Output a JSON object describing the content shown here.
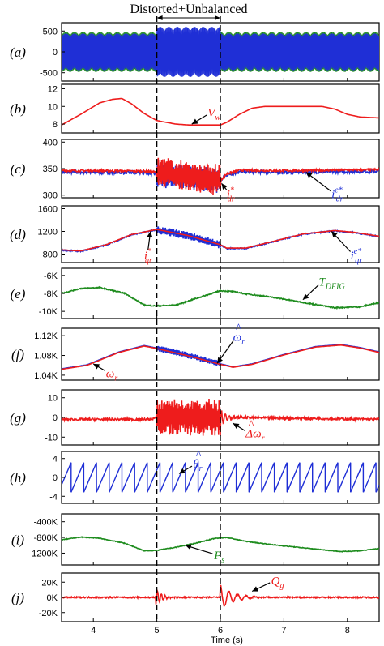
{
  "figure": {
    "title": "Distorted+Unbalanced",
    "xlabel": "Time (s)",
    "xticks": [
      "4",
      "5",
      "6",
      "7",
      "8"
    ],
    "xlim": [
      3.5,
      8.5
    ],
    "event_times": [
      5,
      6
    ],
    "colors": {
      "red": "#ee1c1c",
      "blue": "#1f2fd6",
      "green": "#1e8c1e"
    }
  },
  "chart_data": [
    {
      "label": "(a)",
      "type": "line",
      "ylim": [
        -700,
        700
      ],
      "yticks": [
        {
          "v": 500,
          "t": "500"
        },
        {
          "v": 0,
          "t": "0"
        },
        {
          "v": -500,
          "t": "-500"
        }
      ],
      "kind": "ac_band",
      "series": [
        {
          "color": "green",
          "amp": [
            [
              3.5,
              480
            ],
            [
              5,
              480
            ],
            [
              6,
              480
            ],
            [
              8.5,
              480
            ]
          ]
        },
        {
          "color": "blue",
          "amp": [
            [
              3.5,
              440
            ],
            [
              4.99,
              440
            ],
            [
              5.0,
              600
            ],
            [
              6.0,
              600
            ],
            [
              6.01,
              440
            ],
            [
              8.5,
              440
            ]
          ]
        }
      ],
      "annotations": []
    },
    {
      "label": "(b)",
      "type": "line",
      "ylim": [
        7,
        12.5
      ],
      "yticks": [
        {
          "v": 12,
          "t": "12"
        },
        {
          "v": 10,
          "t": "10"
        },
        {
          "v": 8,
          "t": "8"
        }
      ],
      "series": [
        {
          "color": "red",
          "points": [
            [
              3.5,
              7.9
            ],
            [
              3.8,
              9.1
            ],
            [
              4.1,
              10.4
            ],
            [
              4.3,
              10.8
            ],
            [
              4.45,
              10.9
            ],
            [
              4.6,
              10.3
            ],
            [
              4.8,
              9.2
            ],
            [
              5.0,
              8.4
            ],
            [
              5.3,
              8.0
            ],
            [
              5.5,
              7.9
            ],
            [
              6.0,
              7.9
            ],
            [
              6.1,
              8.2
            ],
            [
              6.3,
              9.1
            ],
            [
              6.5,
              9.8
            ],
            [
              6.7,
              10.0
            ],
            [
              7.6,
              10.0
            ],
            [
              7.8,
              9.7
            ],
            [
              8.0,
              9.1
            ],
            [
              8.2,
              8.8
            ],
            [
              8.5,
              8.7
            ]
          ]
        }
      ],
      "annotations": [
        {
          "text": "V",
          "sub": "w",
          "color": "red",
          "x": 5.85,
          "y": 9.3,
          "ax": 5.55,
          "ay": 8.0
        }
      ]
    },
    {
      "label": "(c)",
      "type": "line",
      "ylim": [
        295,
        405
      ],
      "yticks": [
        {
          "v": 400,
          "t": "400"
        },
        {
          "v": 350,
          "t": "350"
        },
        {
          "v": 300,
          "t": "300"
        }
      ],
      "series": [
        {
          "color": "blue",
          "points": [
            [
              3.5,
              343
            ],
            [
              4.0,
              343
            ],
            [
              4.8,
              342
            ],
            [
              5.0,
              340
            ],
            [
              5.5,
              333
            ],
            [
              6.0,
              327
            ],
            [
              6.1,
              338
            ],
            [
              6.3,
              344
            ],
            [
              7.0,
              343
            ],
            [
              8.5,
              345
            ]
          ],
          "noise": 3,
          "noise_band": [
            [
              5.0,
              6.0,
              22
            ]
          ]
        },
        {
          "color": "red",
          "points": [
            [
              3.5,
              346
            ],
            [
              4.0,
              346
            ],
            [
              4.8,
              345
            ],
            [
              5.0,
              343
            ],
            [
              5.5,
              336
            ],
            [
              6.0,
              328
            ],
            [
              6.1,
              340
            ],
            [
              6.3,
              347
            ],
            [
              7.0,
              346
            ],
            [
              8.5,
              348
            ]
          ],
          "noise": 2,
          "noise_band": [
            [
              5.0,
              6.0,
              28
            ]
          ]
        }
      ],
      "annotations": [
        {
          "text": "i",
          "sub": "dr",
          "sup": "*",
          "color": "red",
          "x": 6.15,
          "y": 302,
          "ax": 6.02,
          "ay": 322
        },
        {
          "text": "i",
          "sub": "dr",
          "sup": "e*",
          "color": "blue",
          "x": 7.8,
          "y": 302,
          "ax": 7.35,
          "ay": 343
        }
      ]
    },
    {
      "label": "(d)",
      "type": "line",
      "ylim": [
        650,
        1650
      ],
      "yticks": [
        {
          "v": 1600,
          "t": "1600"
        },
        {
          "v": 1200,
          "t": "1200"
        },
        {
          "v": 800,
          "t": "800"
        }
      ],
      "series": [
        {
          "color": "blue",
          "points": [
            [
              3.5,
              870
            ],
            [
              3.8,
              850
            ],
            [
              4.2,
              960
            ],
            [
              4.6,
              1140
            ],
            [
              5.0,
              1230
            ],
            [
              5.5,
              1120
            ],
            [
              6.0,
              960
            ],
            [
              6.1,
              900
            ],
            [
              6.4,
              900
            ],
            [
              6.8,
              1010
            ],
            [
              7.3,
              1150
            ],
            [
              7.8,
              1210
            ],
            [
              8.1,
              1180
            ],
            [
              8.5,
              1110
            ]
          ],
          "noise": 10,
          "noise_band": [
            [
              5.0,
              6.0,
              70
            ]
          ]
        },
        {
          "color": "red",
          "points": [
            [
              3.5,
              875
            ],
            [
              3.8,
              855
            ],
            [
              4.2,
              965
            ],
            [
              4.6,
              1145
            ],
            [
              5.0,
              1235
            ],
            [
              5.5,
              1125
            ],
            [
              6.0,
              965
            ],
            [
              6.1,
              905
            ],
            [
              6.4,
              905
            ],
            [
              6.8,
              1015
            ],
            [
              7.3,
              1155
            ],
            [
              7.8,
              1215
            ],
            [
              8.1,
              1185
            ],
            [
              8.5,
              1115
            ]
          ]
        }
      ],
      "annotations": [
        {
          "text": "i",
          "sub": "qr",
          "sup": "*",
          "color": "red",
          "x": 4.85,
          "y": 780,
          "ax": 4.9,
          "ay": 1200
        },
        {
          "text": "i",
          "sub": "qr",
          "sup": "e*",
          "color": "blue",
          "x": 8.1,
          "y": 780,
          "ax": 7.75,
          "ay": 1200
        }
      ]
    },
    {
      "label": "(e)",
      "type": "line",
      "ylim": [
        -10800,
        -5200
      ],
      "yticks": [
        {
          "v": -6000,
          "t": "-6K"
        },
        {
          "v": -8000,
          "t": "-8K"
        },
        {
          "v": -10000,
          "t": "-10K"
        }
      ],
      "series": [
        {
          "color": "green",
          "points": [
            [
              3.5,
              -8000
            ],
            [
              3.8,
              -7450
            ],
            [
              4.1,
              -7350
            ],
            [
              4.5,
              -8000
            ],
            [
              4.8,
              -9300
            ],
            [
              5.0,
              -9400
            ],
            [
              5.3,
              -9300
            ],
            [
              5.6,
              -8600
            ],
            [
              6.0,
              -7700
            ],
            [
              6.2,
              -7800
            ],
            [
              6.4,
              -8050
            ],
            [
              6.8,
              -8400
            ],
            [
              7.3,
              -9000
            ],
            [
              7.8,
              -9600
            ],
            [
              8.2,
              -9500
            ],
            [
              8.5,
              -9000
            ]
          ],
          "noise": 60
        },
        {
          "color": "blue",
          "points": [
            [
              3.5,
              -8000
            ],
            [
              3.8,
              -7450
            ],
            [
              4.1,
              -7350
            ],
            [
              4.5,
              -8000
            ],
            [
              4.8,
              -9300
            ],
            [
              5.0,
              -9400
            ],
            [
              5.3,
              -9300
            ],
            [
              5.6,
              -8600
            ],
            [
              6.0,
              -7700
            ],
            [
              6.2,
              -7800
            ],
            [
              6.4,
              -8050
            ],
            [
              6.8,
              -8400
            ],
            [
              7.3,
              -9000
            ],
            [
              7.8,
              -9600
            ],
            [
              8.2,
              -9500
            ],
            [
              8.5,
              -9000
            ]
          ],
          "hidden": true
        }
      ],
      "annotations": [
        {
          "text": "T",
          "sub": "DFIG",
          "color": "green",
          "x": 7.6,
          "y": -6700,
          "ax": 7.3,
          "ay": -8700
        }
      ]
    },
    {
      "label": "(f)",
      "type": "line",
      "ylim": [
        1030,
        1135
      ],
      "yticks": [
        {
          "v": 1120,
          "t": "1.12K"
        },
        {
          "v": 1080,
          "t": "1.08K"
        },
        {
          "v": 1040,
          "t": "1.04K"
        }
      ],
      "series": [
        {
          "color": "blue",
          "points": [
            [
              3.5,
              1053
            ],
            [
              3.9,
              1061
            ],
            [
              4.4,
              1087
            ],
            [
              4.8,
              1100
            ],
            [
              5.0,
              1095
            ],
            [
              5.5,
              1080
            ],
            [
              6.0,
              1063
            ],
            [
              6.2,
              1057
            ],
            [
              6.5,
              1063
            ],
            [
              7.0,
              1082
            ],
            [
              7.5,
              1098
            ],
            [
              7.9,
              1102
            ],
            [
              8.2,
              1096
            ],
            [
              8.5,
              1087
            ]
          ],
          "noise_band": [
            [
              5.0,
              6.0,
              6
            ]
          ]
        },
        {
          "color": "red",
          "points": [
            [
              3.5,
              1052
            ],
            [
              3.9,
              1060
            ],
            [
              4.4,
              1086
            ],
            [
              4.8,
              1099
            ],
            [
              5.0,
              1094
            ],
            [
              5.5,
              1079
            ],
            [
              6.0,
              1062
            ],
            [
              6.2,
              1056
            ],
            [
              6.5,
              1062
            ],
            [
              7.0,
              1081
            ],
            [
              7.5,
              1097
            ],
            [
              7.9,
              1101
            ],
            [
              8.2,
              1095
            ],
            [
              8.5,
              1086
            ]
          ]
        }
      ],
      "annotations": [
        {
          "text": "ω",
          "sub": "r",
          "hat": true,
          "color": "blue",
          "x": 6.25,
          "y": 1118,
          "ax": 5.95,
          "ay": 1064
        },
        {
          "text": "ω",
          "sub": "r",
          "color": "red",
          "x": 4.25,
          "y": 1044,
          "ax": 4.0,
          "ay": 1063
        }
      ]
    },
    {
      "label": "(g)",
      "type": "line",
      "ylim": [
        -14,
        14
      ],
      "yticks": [
        {
          "v": 10,
          "t": "10"
        },
        {
          "v": 0,
          "t": "0"
        },
        {
          "v": -10,
          "t": "-10"
        }
      ],
      "series": [
        {
          "color": "red",
          "points": [
            [
              3.5,
              -1
            ],
            [
              4.9,
              -1
            ],
            [
              5.0,
              0
            ],
            [
              6.0,
              0
            ],
            [
              6.2,
              0
            ],
            [
              8.5,
              -1
            ]
          ],
          "noise": 0.6,
          "noise_band": [
            [
              5.0,
              6.0,
              9
            ]
          ],
          "ring": [
            6.0,
            6.4,
            4
          ]
        }
      ],
      "annotations": [
        {
          "text": "Δω",
          "sub": "r",
          "hat": true,
          "color": "red",
          "x": 6.45,
          "y": -8,
          "ax": 6.2,
          "ay": -3
        }
      ]
    },
    {
      "label": "(h)",
      "type": "line",
      "ylim": [
        -5.5,
        5.5
      ],
      "yticks": [
        {
          "v": 4,
          "t": "4"
        },
        {
          "v": 0,
          "t": "0"
        },
        {
          "v": -4,
          "t": "-4"
        }
      ],
      "kind": "sawtooth",
      "series": [
        {
          "color": "blue",
          "period": 0.2,
          "min": -3.14,
          "max": 3.14
        }
      ],
      "annotations": [
        {
          "text": "θ",
          "sub": "r",
          "hat": true,
          "color": "blue",
          "x": 5.62,
          "y": 2.9,
          "ax": 5.35,
          "ay": 0.8
        }
      ]
    },
    {
      "label": "(i)",
      "type": "line",
      "ylim": [
        -1500000,
        -200000
      ],
      "yticks": [
        {
          "v": -400000,
          "t": "-400K"
        },
        {
          "v": -800000,
          "t": "-800K"
        },
        {
          "v": -1200000,
          "t": "-1200K"
        }
      ],
      "series": [
        {
          "color": "green",
          "points": [
            [
              3.5,
              -860000
            ],
            [
              3.8,
              -790000
            ],
            [
              4.1,
              -820000
            ],
            [
              4.5,
              -950000
            ],
            [
              4.8,
              -1140000
            ],
            [
              5.0,
              -1130000
            ],
            [
              5.3,
              -1050000
            ],
            [
              5.6,
              -950000
            ],
            [
              5.9,
              -830000
            ],
            [
              6.1,
              -800000
            ],
            [
              6.4,
              -900000
            ],
            [
              6.9,
              -1000000
            ],
            [
              7.4,
              -1080000
            ],
            [
              7.9,
              -1160000
            ],
            [
              8.2,
              -1140000
            ],
            [
              8.5,
              -1080000
            ]
          ],
          "noise": 8000
        }
      ],
      "annotations": [
        {
          "text": "P",
          "sub": "s",
          "color": "green",
          "x": 5.95,
          "y": -1250000,
          "ax": 5.45,
          "ay": -1000000
        }
      ]
    },
    {
      "label": "(j)",
      "type": "line",
      "ylim": [
        -32000,
        32000
      ],
      "yticks": [
        {
          "v": 20000,
          "t": "20K"
        },
        {
          "v": 0,
          "t": "0K"
        },
        {
          "v": -20000,
          "t": "-20K"
        }
      ],
      "series": [
        {
          "color": "red",
          "points": [
            [
              3.5,
              0
            ],
            [
              8.5,
              0
            ]
          ],
          "noise": 900,
          "ring2": [
            [
              4.98,
              5.25,
              -12000
            ],
            [
              6.0,
              6.6,
              16000
            ]
          ]
        }
      ],
      "annotations": [
        {
          "text": "Q",
          "sub": "g",
          "color": "red",
          "x": 6.85,
          "y": 22000,
          "ax": 6.5,
          "ay": 8000
        }
      ]
    }
  ]
}
